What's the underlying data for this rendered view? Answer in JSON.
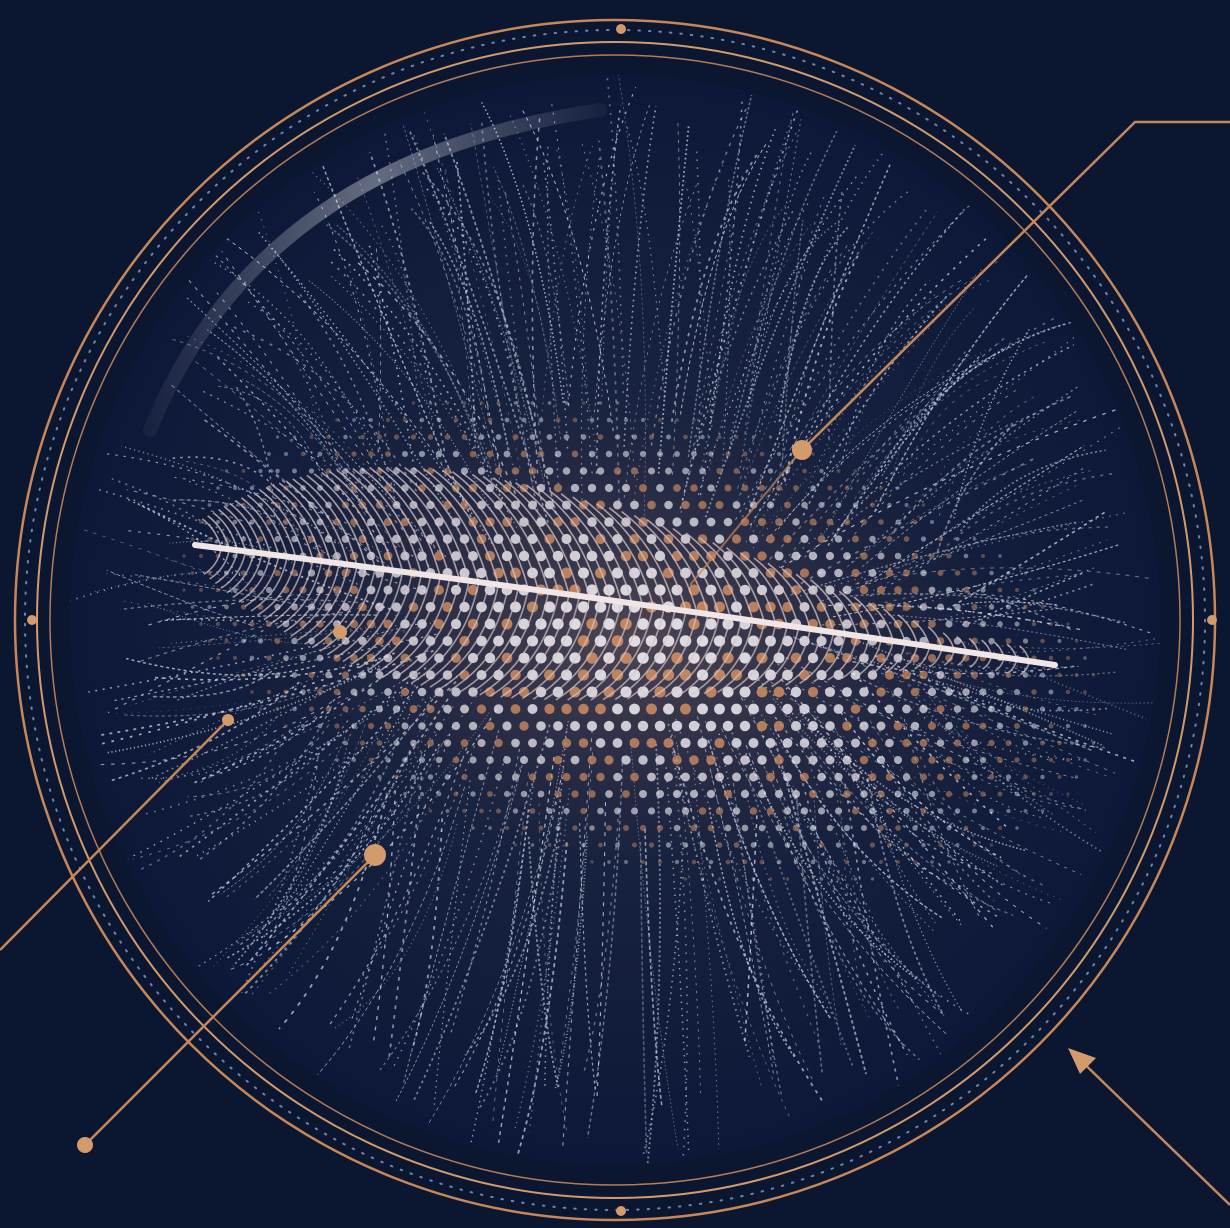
{
  "artwork": {
    "subject": "feather-icon",
    "palette": {
      "background": "#0b1630",
      "inner_disc": "#101d3d",
      "ring_gold": "#c8875a",
      "ring_gold_light": "#e0a878",
      "dots_white": "#e8e4ea",
      "dots_copper": "#c98a62",
      "feather_shaft": "#f1e6e6",
      "feather_vane": "#d9c4c6",
      "filament": "#c9d3e8"
    },
    "callouts": [
      {
        "name": "callout-top-right"
      },
      {
        "name": "callout-left"
      },
      {
        "name": "callout-bottom-left"
      },
      {
        "name": "callout-bottom-right-arrow"
      }
    ]
  }
}
